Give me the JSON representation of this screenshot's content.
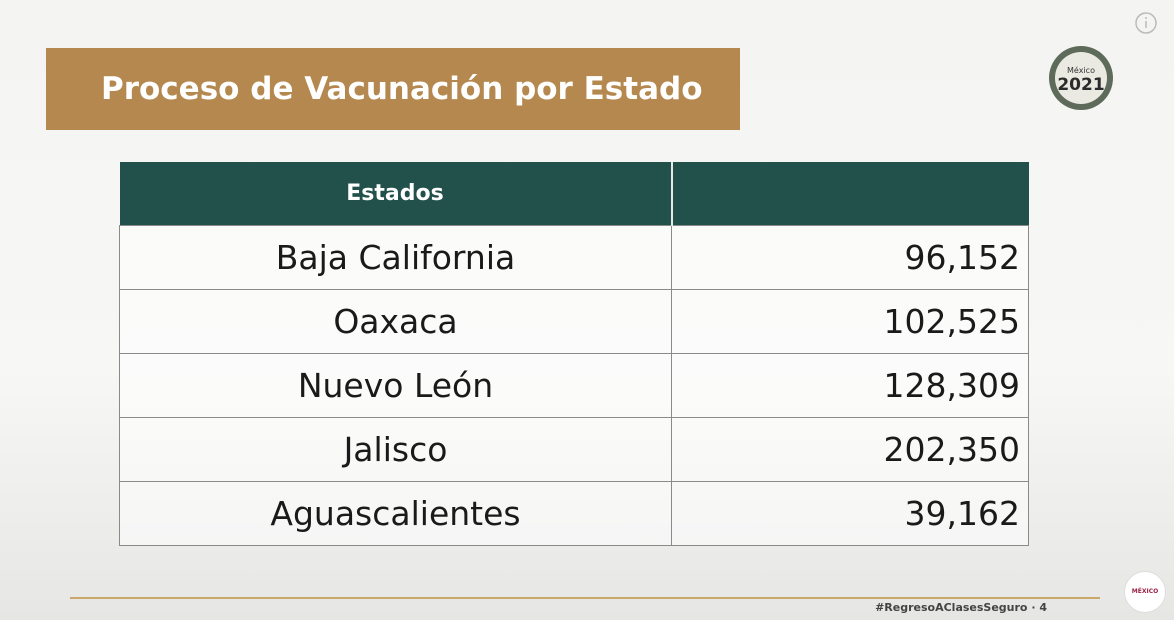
{
  "header": {
    "title": "Proceso de Vacunación por Estado"
  },
  "logo": {
    "line1": "México",
    "line2": "2021"
  },
  "table": {
    "columns": [
      "Estados"
    ],
    "rows": [
      [
        "Baja California",
        "96,152"
      ],
      [
        "Oaxaca",
        "102,525"
      ],
      [
        "Nuevo León",
        "128,309"
      ],
      [
        "Jalisco",
        "202,350"
      ],
      [
        "Aguascalientes",
        "39,162"
      ]
    ]
  },
  "footer": {
    "hashtag": "#RegresoAClasesSeguro · 4",
    "badge": "MÉXICO"
  }
}
